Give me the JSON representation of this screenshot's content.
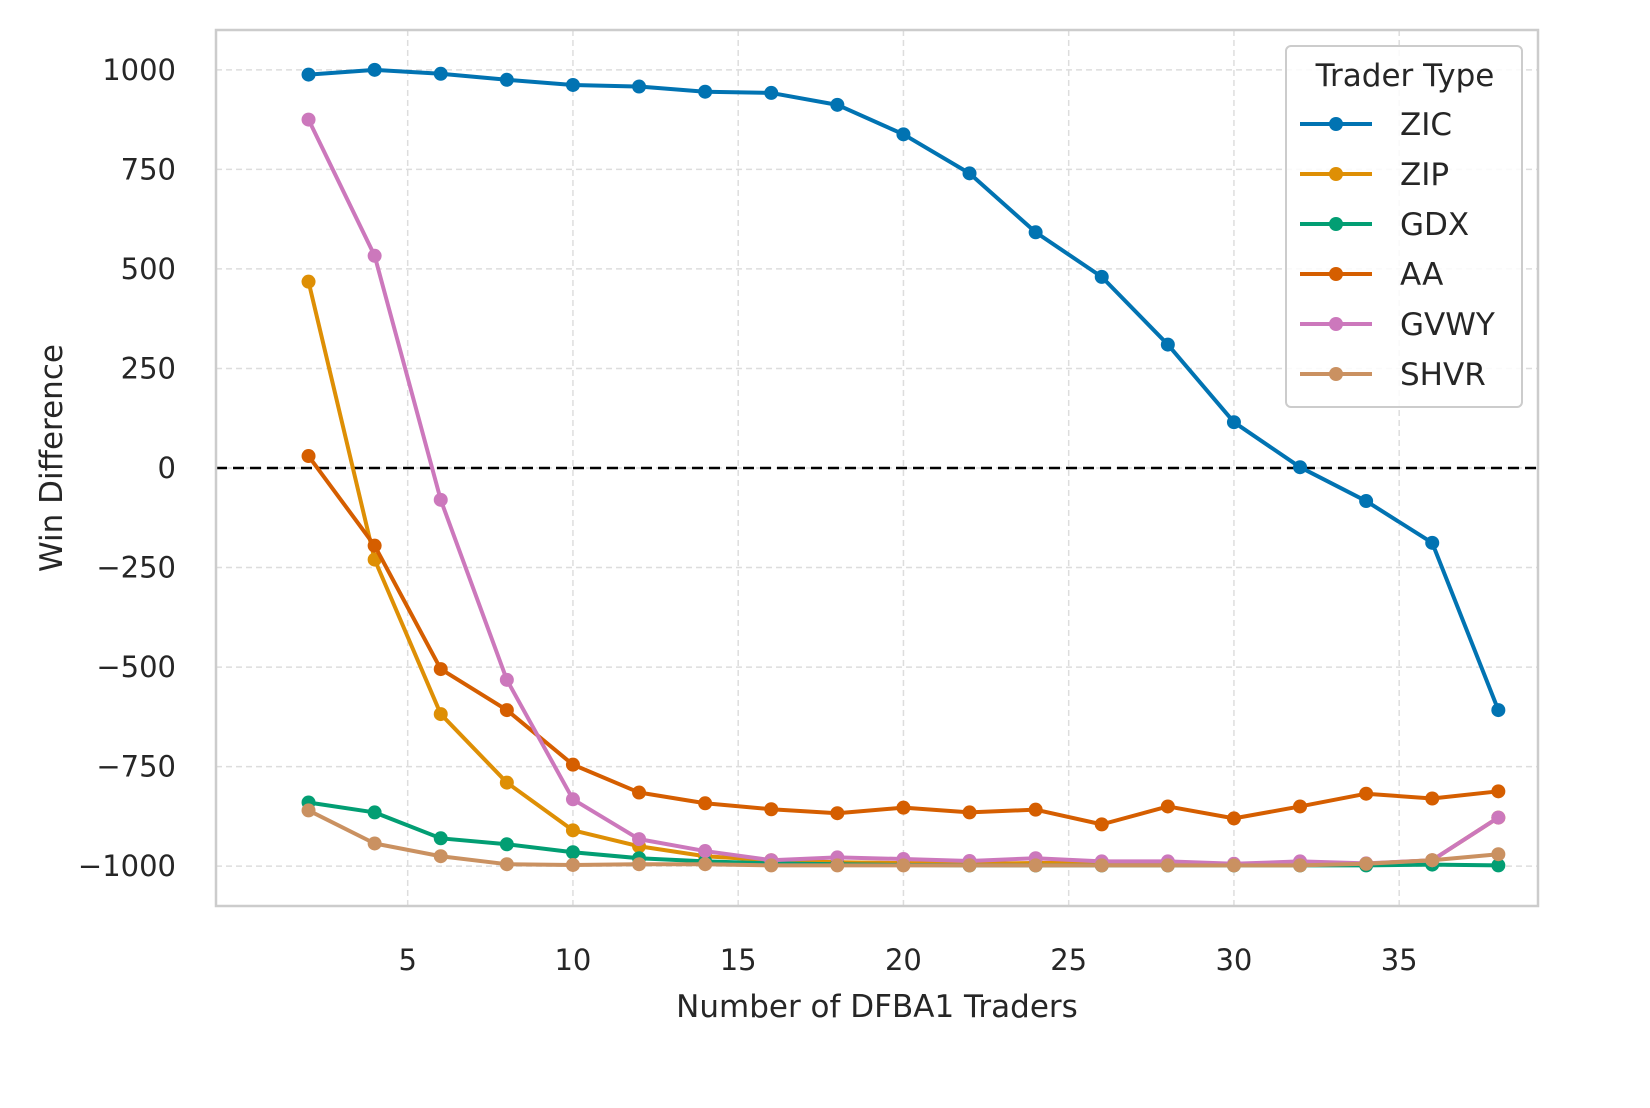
{
  "chart_data": {
    "type": "line",
    "xlabel": "Number of DFBA1 Traders",
    "ylabel": "Win Difference",
    "xlim": [
      -0.8,
      39.2
    ],
    "ylim": [
      -1100,
      1100
    ],
    "x_ticks": [
      5,
      10,
      15,
      20,
      25,
      30,
      35
    ],
    "y_ticks": [
      1000,
      750,
      500,
      250,
      0,
      -250,
      -500,
      -750,
      -1000
    ],
    "y_tick_labels": [
      "1000",
      "750",
      "500",
      "250",
      "0",
      "−250",
      "−500",
      "−750",
      "−1000"
    ],
    "grid": true,
    "reference_line": {
      "y": 0,
      "style": "dashed",
      "color": "#000000"
    },
    "legend": {
      "title": "Trader Type",
      "placement": "top-right"
    },
    "x": [
      2,
      4,
      6,
      8,
      10,
      12,
      14,
      16,
      18,
      20,
      22,
      24,
      26,
      28,
      30,
      32,
      34,
      36,
      38
    ],
    "series": [
      {
        "name": "ZIC",
        "color": "#0173b2",
        "values": [
          988,
          1000,
          990,
          975,
          962,
          958,
          945,
          942,
          912,
          838,
          740,
          592,
          480,
          310,
          115,
          2,
          -83,
          -188,
          -608
        ]
      },
      {
        "name": "ZIP",
        "color": "#de8f05",
        "values": [
          468,
          -230,
          -618,
          -790,
          -910,
          -950,
          -975,
          -985,
          -990,
          -992,
          -994,
          -992,
          -990,
          -994,
          -996,
          -996,
          -994,
          -985,
          -878
        ]
      },
      {
        "name": "GDX",
        "color": "#029e73",
        "values": [
          -840,
          -865,
          -930,
          -945,
          -965,
          -980,
          -988,
          -993,
          -995,
          -997,
          -998,
          -998,
          -998,
          -998,
          -998,
          -998,
          -998,
          -996,
          -998
        ]
      },
      {
        "name": "AA",
        "color": "#d55e00",
        "values": [
          30,
          -195,
          -505,
          -608,
          -745,
          -815,
          -842,
          -857,
          -867,
          -853,
          -865,
          -858,
          -895,
          -850,
          -880,
          -850,
          -818,
          -830,
          -812
        ]
      },
      {
        "name": "GVWY",
        "color": "#cc78bc",
        "values": [
          875,
          533,
          -80,
          -532,
          -832,
          -932,
          -962,
          -985,
          -978,
          -982,
          -987,
          -980,
          -988,
          -988,
          -994,
          -988,
          -993,
          -985,
          -878
        ]
      },
      {
        "name": "SHVR",
        "color": "#ca9161",
        "values": [
          -860,
          -943,
          -975,
          -995,
          -997,
          -995,
          -995,
          -998,
          -998,
          -998,
          -998,
          -998,
          -998,
          -998,
          -998,
          -998,
          -994,
          -985,
          -970
        ]
      }
    ]
  }
}
